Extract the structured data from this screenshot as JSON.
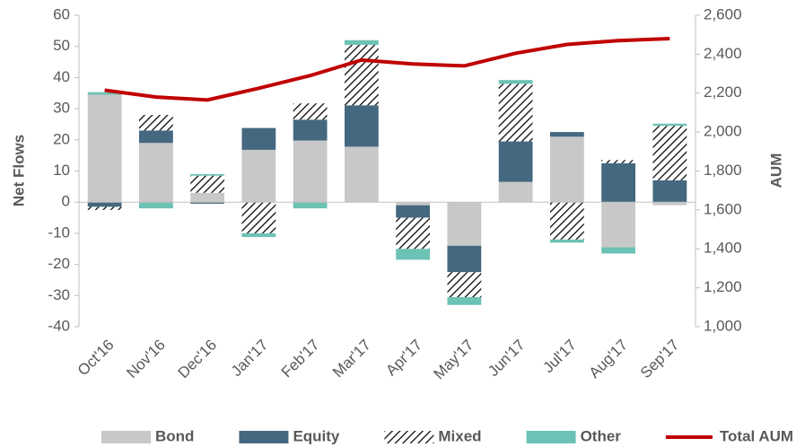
{
  "chart_data": {
    "type": "stacked-bar-line",
    "y_label": "Net Flows",
    "y2_label": "AUM",
    "categories": [
      "Oct'16",
      "Nov'16",
      "Dec'16",
      "Jan'17",
      "Feb'17",
      "Mar'17",
      "Apr'17",
      "May'17",
      "Jun'17",
      "Jul'17",
      "Aug'17",
      "Sep'17"
    ],
    "series": [
      {
        "name": "Bond",
        "color": "#c8c8c8",
        "values": [
          34.5,
          19,
          3,
          16.8,
          19.8,
          17.8,
          -1,
          -14,
          6.5,
          21,
          -14.5,
          -1
        ]
      },
      {
        "name": "Equity",
        "color": "#44687f",
        "values": [
          -1.5,
          4,
          -0.5,
          7,
          6.7,
          13.3,
          -4,
          -8.5,
          13,
          1.5,
          12.5,
          7
        ]
      },
      {
        "name": "Mixed",
        "color": "#000000",
        "hatch": true,
        "values": [
          -1,
          5,
          5.5,
          -10,
          5.2,
          19.4,
          -10,
          -8,
          18.5,
          -12,
          1,
          17.5
        ]
      },
      {
        "name": "Other",
        "color": "#6cc2b4",
        "values": [
          0.8,
          -2,
          0.5,
          -1.2,
          -2,
          1.5,
          -3.5,
          -2.5,
          1.2,
          -1,
          -2,
          0.7
        ]
      },
      {
        "name": "Total AUM",
        "color": "#c00000",
        "axis": "y2",
        "line": true,
        "values": [
          2215,
          2180,
          2165,
          2225,
          2290,
          2370,
          2350,
          2340,
          2405,
          2450,
          2470,
          2480
        ]
      }
    ],
    "ylim": [
      -40,
      60
    ],
    "yticks": [
      -40,
      -30,
      -20,
      -10,
      0,
      10,
      20,
      30,
      40,
      50,
      60
    ],
    "y2lim": [
      1000,
      2600
    ],
    "y2ticks": [
      {
        "value": 1000,
        "label": "1,000"
      },
      {
        "value": 1200,
        "label": "1,200"
      },
      {
        "value": 1400,
        "label": "1,400"
      },
      {
        "value": 1600,
        "label": "1,600"
      },
      {
        "value": 1800,
        "label": "1,800"
      },
      {
        "value": 2000,
        "label": "2,000"
      },
      {
        "value": 2200,
        "label": "2,200"
      },
      {
        "value": 2400,
        "label": "2,400"
      },
      {
        "value": 2600,
        "label": "2,600"
      }
    ],
    "legend": "bottom"
  }
}
